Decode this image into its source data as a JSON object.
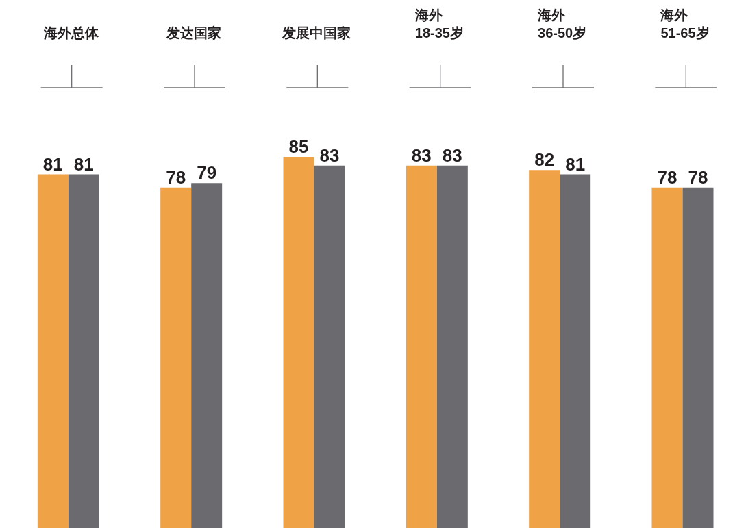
{
  "chart_data": {
    "type": "bar",
    "categories": [
      "海外总体",
      "发达国家",
      "发展中国家",
      "海外\n18-35岁",
      "海外\n36-50岁",
      "海外\n51-65岁"
    ],
    "series": [
      {
        "color": "#f0a247",
        "values": [
          81,
          78,
          85,
          83,
          82,
          78
        ]
      },
      {
        "color": "#6b6b6f",
        "values": [
          81,
          79,
          83,
          83,
          81,
          78
        ]
      }
    ],
    "data_labels": true
  }
}
